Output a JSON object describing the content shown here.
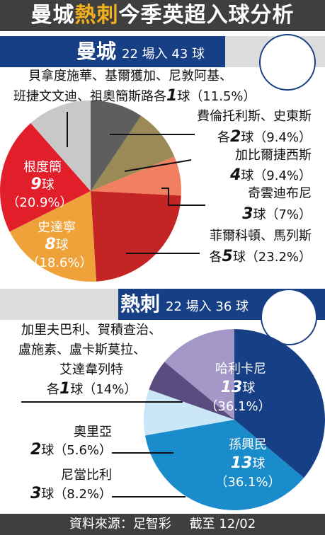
{
  "header": {
    "title_pre": "曼城",
    "title_hl": "熱刺",
    "title_post": "今季英超入球分析"
  },
  "chart_data": [
    {
      "type": "pie",
      "team": "曼城",
      "summary": "22 場入 43 球",
      "slices": [
        {
          "label": "費倫托利斯、史東斯 各2球",
          "goals_text": "2",
          "value": 9.4,
          "pct_text": "（9.4%）",
          "color": "#5e5e5e"
        },
        {
          "label": "加比爾捷西斯 4球",
          "goals_text": "4",
          "value": 9.4,
          "pct_text": "（9.4%）",
          "color": "#9b8a55"
        },
        {
          "label": "奇雲迪布尼 3球",
          "goals_text": "3",
          "value": 7.0,
          "pct_text": "（7%）",
          "color": "#f27f5f"
        },
        {
          "label": "菲爾科頓、馬列斯 各5球",
          "goals_text": "5",
          "value": 23.2,
          "pct_text": "（23.2%）",
          "color": "#c42424"
        },
        {
          "label": "史達寧 8球",
          "goals_text": "8",
          "value": 18.6,
          "pct_text": "（18.6%）",
          "color": "#f0a23a"
        },
        {
          "label": "根度簡 9球",
          "goals_text": "9",
          "value": 20.9,
          "pct_text": "（20.9%）",
          "color": "#e21e2b"
        },
        {
          "label": "貝拿度施華、基爾獲加、尼敦阿基、班捷文文迪、祖奧簡斯路 各1球",
          "goals_text": "1",
          "value": 11.5,
          "pct_text": "（11.5%）",
          "color": "#c8c8c8"
        }
      ]
    },
    {
      "type": "pie",
      "team": "熱刺",
      "summary": "22 場入 36 球",
      "slices": [
        {
          "label": "哈利卡尼 13球",
          "goals_text": "13",
          "value": 36.1,
          "pct_text": "（36.1%）",
          "color": "#173f86"
        },
        {
          "label": "孫興民 13球",
          "goals_text": "13",
          "value": 36.1,
          "pct_text": "（36.1%）",
          "color": "#1a8ccc"
        },
        {
          "label": "尼當比利 3球",
          "goals_text": "3",
          "value": 8.2,
          "pct_text": "（8.2%）",
          "color": "#cbe7f7"
        },
        {
          "label": "奧里亞 2球",
          "goals_text": "2",
          "value": 5.6,
          "pct_text": "（5.6%）",
          "color": "#5b4c80"
        },
        {
          "label": "加里夫巴利、賀積查治、盧施素、盧卡斯莫拉、艾達韋列特 各1球",
          "goals_text": "1",
          "value": 14.0,
          "pct_text": "（14%）",
          "color": "#a397c7"
        }
      ]
    }
  ],
  "mc_labels": {
    "others_line1": "貝拿度施華、基爾獲加、尼敦阿基、",
    "others_line2a": "班捷文文迪、祖奧簡斯路各",
    "others_goals": "1",
    "others_line2b": "球（11.5%）",
    "s1_line1": "費倫托利斯、史東斯",
    "s1_pre": "各",
    "s1_goals": "2",
    "s1_post": "球（9.4%）",
    "s2_line1": "加比爾捷西斯",
    "s2_goals": "4",
    "s2_post": "球（9.4%）",
    "s3_line1": "奇雲迪布尼",
    "s3_goals": "3",
    "s3_post": "球（7%）",
    "s4_line1": "菲爾科頓、馬列斯",
    "s4_pre": "各",
    "s4_goals": "5",
    "s4_post": "球（23.2%）",
    "s5_name": "史達寧",
    "s5_goals": "8",
    "s5_unit": "球",
    "s5_pct": "（18.6%）",
    "s6_name": "根度簡",
    "s6_goals": "9",
    "s6_unit": "球",
    "s6_pct": "（20.9%）"
  },
  "spurs_labels": {
    "others_line1": "加里夫巴利、賀積查治、",
    "others_line2": "盧施素、盧卡斯莫拉、",
    "others_line3": "艾達韋列特",
    "others_pre": "各",
    "others_goals": "1",
    "others_post": "球（14%）",
    "kane_name": "哈利卡尼",
    "kane_goals": "13",
    "kane_unit": "球",
    "kane_pct": "（36.1%）",
    "son_name": "孫興民",
    "son_goals": "13",
    "son_unit": "球",
    "son_pct": "（36.1%）",
    "aurier_name": "奧里亞",
    "aurier_goals": "2",
    "aurier_post": "球（5.6%）",
    "lamela_name": "尼當比利",
    "lamela_goals": "3",
    "lamela_post": "球（8.2%）"
  },
  "footer": {
    "source": "資料來源：足智彩",
    "as_of": "截至 12/02"
  }
}
